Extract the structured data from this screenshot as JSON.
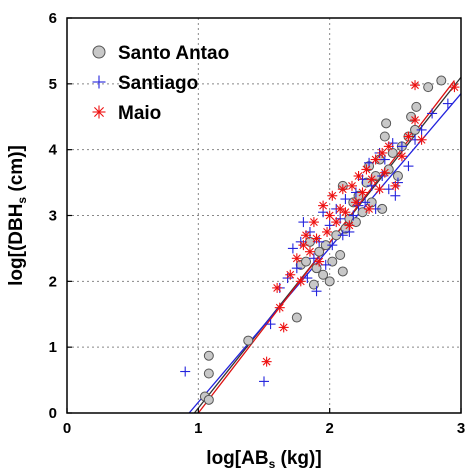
{
  "chart_data": {
    "type": "scatter",
    "xlabel_main": "log[AB",
    "xlabel_sub": "s",
    "xlabel_end": " (kg)]",
    "ylabel_main": "log[(DBH",
    "ylabel_sub": "s",
    "ylabel_end": " (cm)]",
    "xlim": [
      0,
      3
    ],
    "ylim": [
      0,
      6
    ],
    "x_ticks": [
      "0",
      "1",
      "2",
      "3"
    ],
    "y_ticks": [
      "0",
      "1",
      "2",
      "3",
      "4",
      "5",
      "6"
    ],
    "grid": true,
    "legend_position": "top-left",
    "series": [
      {
        "name": "Santo Antao",
        "marker": "circle",
        "color": "#555555",
        "fill": "#c8c8c8",
        "points": [
          [
            1.05,
            0.25
          ],
          [
            1.08,
            0.2
          ],
          [
            1.08,
            0.6
          ],
          [
            1.08,
            0.87
          ],
          [
            1.38,
            1.1
          ],
          [
            1.75,
            1.45
          ],
          [
            1.78,
            2.25
          ],
          [
            1.82,
            2.3
          ],
          [
            1.85,
            2.6
          ],
          [
            1.88,
            1.95
          ],
          [
            1.9,
            2.2
          ],
          [
            1.92,
            2.45
          ],
          [
            1.95,
            2.1
          ],
          [
            1.97,
            2.55
          ],
          [
            2.0,
            2.0
          ],
          [
            2.02,
            2.3
          ],
          [
            2.05,
            2.7
          ],
          [
            2.08,
            2.4
          ],
          [
            2.1,
            2.15
          ],
          [
            2.1,
            3.45
          ],
          [
            2.12,
            2.8
          ],
          [
            2.15,
            2.95
          ],
          [
            2.18,
            3.2
          ],
          [
            2.2,
            2.9
          ],
          [
            2.22,
            3.3
          ],
          [
            2.25,
            3.05
          ],
          [
            2.28,
            3.5
          ],
          [
            2.3,
            3.75
          ],
          [
            2.32,
            3.2
          ],
          [
            2.35,
            3.6
          ],
          [
            2.38,
            3.85
          ],
          [
            2.4,
            3.1
          ],
          [
            2.42,
            4.2
          ],
          [
            2.43,
            4.4
          ],
          [
            2.45,
            3.7
          ],
          [
            2.48,
            3.95
          ],
          [
            2.52,
            3.6
          ],
          [
            2.55,
            4.05
          ],
          [
            2.6,
            4.2
          ],
          [
            2.62,
            4.5
          ],
          [
            2.65,
            4.3
          ],
          [
            2.66,
            4.65
          ],
          [
            2.75,
            4.95
          ],
          [
            2.85,
            5.05
          ]
        ]
      },
      {
        "name": "Santiago",
        "marker": "plus",
        "color": "#2222dd",
        "points": [
          [
            0.9,
            0.63
          ],
          [
            1.5,
            0.48
          ],
          [
            1.55,
            1.35
          ],
          [
            1.62,
            1.9
          ],
          [
            1.68,
            2.05
          ],
          [
            1.72,
            2.5
          ],
          [
            1.75,
            2.2
          ],
          [
            1.78,
            2.6
          ],
          [
            1.8,
            2.9
          ],
          [
            1.83,
            2.05
          ],
          [
            1.85,
            2.75
          ],
          [
            1.88,
            2.35
          ],
          [
            1.9,
            1.85
          ],
          [
            1.92,
            2.6
          ],
          [
            1.95,
            3.05
          ],
          [
            1.97,
            2.25
          ],
          [
            2.0,
            2.85
          ],
          [
            2.02,
            2.55
          ],
          [
            2.05,
            3.1
          ],
          [
            2.08,
            2.95
          ],
          [
            2.1,
            2.7
          ],
          [
            2.12,
            3.25
          ],
          [
            2.15,
            2.75
          ],
          [
            2.18,
            3.0
          ],
          [
            2.2,
            3.35
          ],
          [
            2.22,
            3.15
          ],
          [
            2.25,
            3.55
          ],
          [
            2.27,
            3.2
          ],
          [
            2.3,
            3.8
          ],
          [
            2.32,
            3.45
          ],
          [
            2.35,
            3.1
          ],
          [
            2.38,
            3.95
          ],
          [
            2.4,
            3.6
          ],
          [
            2.42,
            3.85
          ],
          [
            2.45,
            3.4
          ],
          [
            2.48,
            4.1
          ],
          [
            2.5,
            3.3
          ],
          [
            2.52,
            3.5
          ],
          [
            2.55,
            4.05
          ],
          [
            2.6,
            3.75
          ],
          [
            2.65,
            4.15
          ],
          [
            2.7,
            4.3
          ],
          [
            2.78,
            4.55
          ],
          [
            2.9,
            4.7
          ]
        ]
      },
      {
        "name": "Maio",
        "marker": "asterisk",
        "color": "#ee1111",
        "points": [
          [
            1.52,
            0.78
          ],
          [
            1.6,
            1.9
          ],
          [
            1.62,
            1.6
          ],
          [
            1.65,
            1.3
          ],
          [
            1.7,
            2.1
          ],
          [
            1.75,
            2.35
          ],
          [
            1.78,
            2.0
          ],
          [
            1.8,
            2.55
          ],
          [
            1.82,
            2.7
          ],
          [
            1.85,
            2.45
          ],
          [
            1.88,
            2.9
          ],
          [
            1.9,
            2.65
          ],
          [
            1.92,
            2.3
          ],
          [
            1.95,
            3.15
          ],
          [
            1.98,
            2.75
          ],
          [
            2.0,
            3.0
          ],
          [
            2.02,
            3.3
          ],
          [
            2.05,
            2.9
          ],
          [
            2.08,
            3.1
          ],
          [
            2.1,
            3.4
          ],
          [
            2.12,
            3.05
          ],
          [
            2.15,
            2.85
          ],
          [
            2.17,
            3.45
          ],
          [
            2.2,
            3.2
          ],
          [
            2.22,
            3.6
          ],
          [
            2.25,
            3.35
          ],
          [
            2.28,
            3.7
          ],
          [
            2.3,
            3.1
          ],
          [
            2.32,
            3.55
          ],
          [
            2.35,
            3.85
          ],
          [
            2.38,
            3.4
          ],
          [
            2.4,
            3.95
          ],
          [
            2.42,
            3.65
          ],
          [
            2.45,
            4.05
          ],
          [
            2.5,
            3.45
          ],
          [
            2.55,
            3.9
          ],
          [
            2.6,
            4.2
          ],
          [
            2.65,
            4.45
          ],
          [
            2.7,
            4.15
          ],
          [
            2.95,
            4.95
          ],
          [
            2.65,
            4.98
          ]
        ]
      }
    ],
    "fit_lines": [
      {
        "series": "Santo Antao",
        "color": "#333333",
        "x": [
          0.97,
          3.0
        ],
        "y": [
          0.0,
          5.1
        ]
      },
      {
        "series": "Santiago",
        "color": "#2222dd",
        "x": [
          0.93,
          3.0
        ],
        "y": [
          0.0,
          4.85
        ]
      },
      {
        "series": "Maio",
        "color": "#dd1111",
        "x": [
          1.0,
          2.95
        ],
        "y": [
          0.0,
          5.05
        ]
      }
    ]
  }
}
